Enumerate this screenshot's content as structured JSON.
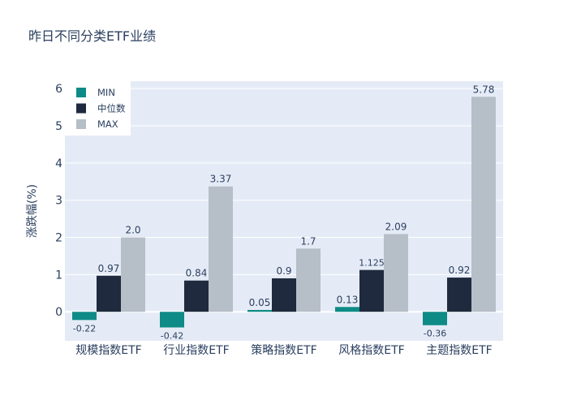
{
  "chart_data": {
    "type": "bar",
    "title": "昨日不同分类ETF业绩",
    "xlabel": "",
    "ylabel": "涨跌幅(%)",
    "ylim": [
      -0.78,
      6.2
    ],
    "yticks": [
      0,
      1,
      2,
      3,
      4,
      5,
      6
    ],
    "grid": true,
    "legend_position": "top-left",
    "categories": [
      "规模指数ETF",
      "行业指数ETF",
      "策略指数ETF",
      "风格指数ETF",
      "主题指数ETF"
    ],
    "series": [
      {
        "name": "MIN",
        "color": "#0e8b86",
        "values": [
          -0.22,
          -0.42,
          0.05,
          0.13,
          -0.36
        ],
        "labels": [
          "-0.22",
          "-0.42",
          "0.05",
          "0.13",
          "-0.36"
        ]
      },
      {
        "name": "中位数",
        "color": "#1f2a3e",
        "values": [
          0.97,
          0.84,
          0.9,
          1.125,
          0.92
        ],
        "labels": [
          "0.97",
          "0.84",
          "0.9",
          "1.125",
          "0.92"
        ]
      },
      {
        "name": "MAX",
        "color": "#b6bec7",
        "values": [
          2.0,
          3.37,
          1.7,
          2.09,
          5.78
        ],
        "labels": [
          "2.0",
          "3.37",
          "1.7",
          "2.09",
          "5.78"
        ]
      }
    ]
  },
  "colors": {
    "plot_background": "#e5ebf6",
    "grid": "#ffffff",
    "text": "#2a3f5f"
  }
}
